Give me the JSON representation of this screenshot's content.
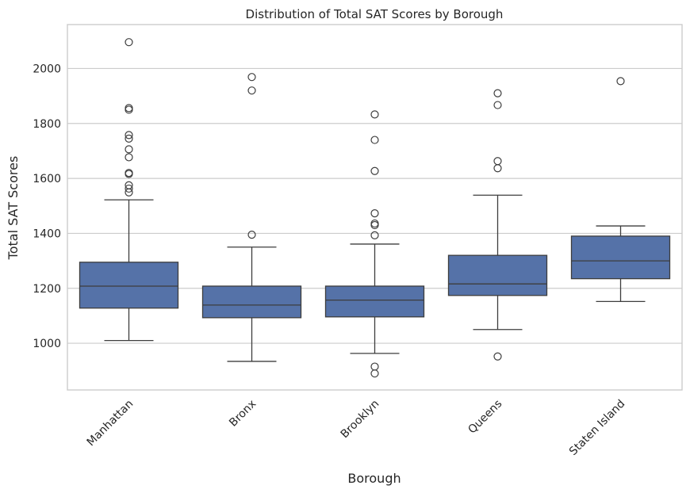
{
  "chart_data": {
    "type": "box",
    "title": "Distribution of Total SAT Scores by Borough",
    "xlabel": "Borough",
    "ylabel": "Total SAT Scores",
    "ylim": [
      830,
      2160
    ],
    "yticks": [
      1000,
      1200,
      1400,
      1600,
      1800,
      2000
    ],
    "grid": "y",
    "box_color": "#5572a8",
    "categories": [
      "Manhattan",
      "Bronx",
      "Brooklyn",
      "Queens",
      "Staten Island"
    ],
    "boxes": [
      {
        "category": "Manhattan",
        "whisker_low": 1010,
        "q1": 1128,
        "median": 1208,
        "q3": 1295,
        "whisker_high": 1522,
        "outliers": [
          2096,
          1856,
          1850,
          1758,
          1745,
          1706,
          1677,
          1620,
          1616,
          1575,
          1563,
          1549
        ]
      },
      {
        "category": "Bronx",
        "whisker_low": 934,
        "q1": 1093,
        "median": 1139,
        "q3": 1208,
        "whisker_high": 1350,
        "outliers": [
          1969,
          1920,
          1395
        ]
      },
      {
        "category": "Brooklyn",
        "whisker_low": 963,
        "q1": 1096,
        "median": 1157,
        "q3": 1208,
        "whisker_high": 1361,
        "outliers": [
          1833,
          1740,
          1627,
          1473,
          1436,
          1430,
          1393,
          915,
          890
        ]
      },
      {
        "category": "Queens",
        "whisker_low": 1050,
        "q1": 1174,
        "median": 1216,
        "q3": 1320,
        "whisker_high": 1539,
        "outliers": [
          1910,
          1867,
          1663,
          1637,
          952
        ]
      },
      {
        "category": "Staten Island",
        "whisker_low": 1152,
        "q1": 1235,
        "median": 1300,
        "q3": 1390,
        "whisker_high": 1427,
        "outliers": [
          1954
        ]
      }
    ]
  }
}
